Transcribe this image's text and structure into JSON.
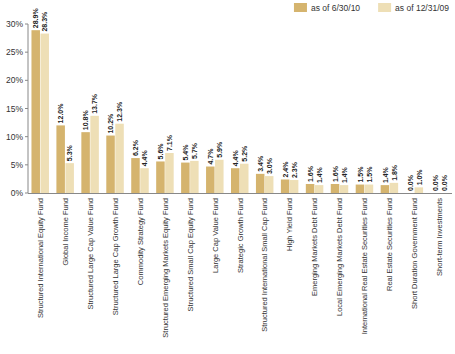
{
  "chart_data": {
    "type": "bar",
    "categories": [
      "Structured International Equity Fund",
      "Global Income Fund",
      "Structured Large Cap Value Fund",
      "Structured Large Cap Growth Fund",
      "Commodity Strategy Fund",
      "Structured Emerging Markets Equity Fund",
      "Structured Small Cap Equity Fund",
      "Large Cap Value Fund",
      "Strategic Growth Fund",
      "Structured International Small Cap Fund",
      "High Yield Fund",
      "Emerging Markets Debt Fund",
      "Local Emerging Markets Debt Fund",
      "International Real Estate Securities Fund",
      "Real Estate Securities Fund",
      "Short Duration Government Fund",
      "Short-term Investments"
    ],
    "series": [
      {
        "name": "as of 6/30/10",
        "color": "#d5b46e",
        "values": [
          28.9,
          12.0,
          10.8,
          10.2,
          6.2,
          5.6,
          5.4,
          4.7,
          4.4,
          3.4,
          2.4,
          1.6,
          1.6,
          1.5,
          1.4,
          0.0,
          0.0
        ],
        "value_labels": [
          "28.9%",
          "12.0%",
          "10.8%",
          "10.2%",
          "6.2%",
          "5.6%",
          "5.4%",
          "4.7%",
          "4.4%",
          "3.4%",
          "2.4%",
          "1.6%",
          "1.6%",
          "1.5%",
          "1.4%",
          "0.0%",
          "0.0%"
        ]
      },
      {
        "name": "as of 12/31/09",
        "color": "#eedfb6",
        "values": [
          28.3,
          5.3,
          13.7,
          12.3,
          4.4,
          7.1,
          5.7,
          5.9,
          5.2,
          3.0,
          2.3,
          1.4,
          1.4,
          1.5,
          1.8,
          1.0,
          0.0
        ],
        "value_labels": [
          "28.3%",
          "5.3%",
          "13.7%",
          "12.3%",
          "4.4%",
          "7.1%",
          "5.7%",
          "5.9%",
          "5.2%",
          "3.0%",
          "2.3%",
          "1.4%",
          "1.4%",
          "1.5%",
          "1.8%",
          "1.0%",
          "0.0%"
        ]
      }
    ],
    "ylim": [
      0,
      30
    ],
    "yticks": [
      {
        "value": 0,
        "label": "0%"
      },
      {
        "value": 5,
        "label": "5%"
      },
      {
        "value": 10,
        "label": "10%"
      },
      {
        "value": 15,
        "label": "15%"
      },
      {
        "value": 20,
        "label": "20%"
      },
      {
        "value": 25,
        "label": "25%"
      },
      {
        "value": 30,
        "label": "30%"
      }
    ],
    "grid": false,
    "legend": "top-right",
    "data_labels": true
  }
}
